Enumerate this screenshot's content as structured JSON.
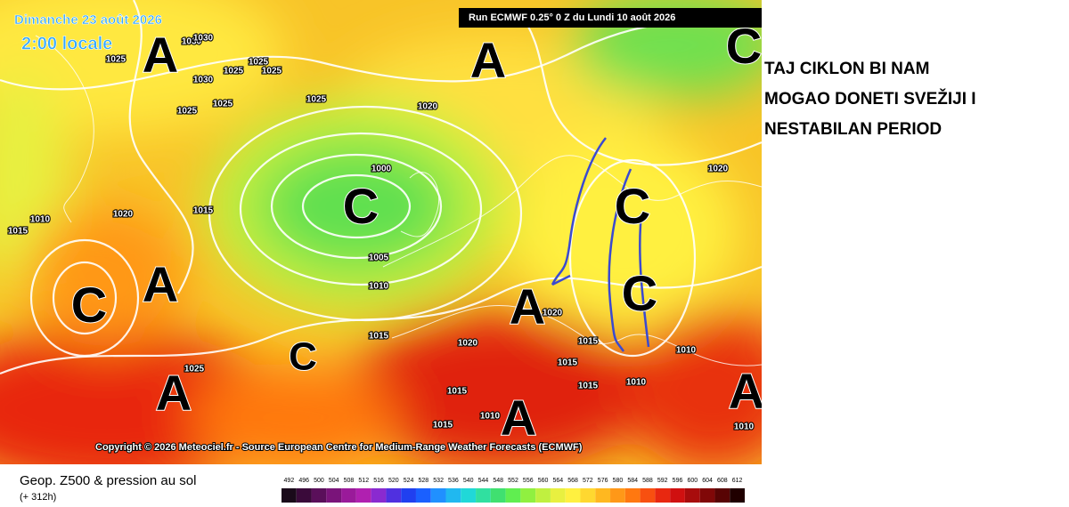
{
  "header": {
    "date": "Dimanche 23 août 2026",
    "time": "2:00 locale",
    "run": "Run ECMWF 0.25° 0 Z du Lundi 10 août 2026"
  },
  "caption": [
    "TAJ CIKLON BI NAM",
    "MOGAO DONETI SVEŽIJI I",
    "NESTABILAN PERIOD"
  ],
  "copyright": "Copyright © 2026 Meteociel.fr - Source European Centre for Medium-Range Weather Forecasts (ECMWF)",
  "footer": {
    "title": "Geop. Z500 & pression au sol",
    "lead": "(+ 312h)"
  },
  "centers": [
    "A",
    "A",
    "A",
    "A",
    "A",
    "A",
    "A",
    "C",
    "C",
    "C",
    "C",
    "C",
    "C"
  ],
  "pressure_labels": [
    "1030",
    "1030",
    "1025",
    "1030",
    "1025",
    "1025",
    "1025",
    "1025",
    "1025",
    "1020",
    "1025",
    "1000",
    "1005",
    "1010",
    "1015",
    "1020",
    "1010",
    "1015",
    "1015",
    "1020",
    "1015",
    "1015",
    "1015",
    "1010",
    "1010",
    "1010",
    "1015",
    "1020",
    "1020",
    "1025",
    "1015",
    "1010"
  ],
  "colorbar": [
    {
      "value": 492,
      "color": "#1a0a1a"
    },
    {
      "value": 496,
      "color": "#3a0a3a"
    },
    {
      "value": 500,
      "color": "#5a0f5a"
    },
    {
      "value": 504,
      "color": "#7a147a"
    },
    {
      "value": 508,
      "color": "#9a1a9a"
    },
    {
      "value": 512,
      "color": "#b020b0"
    },
    {
      "value": 516,
      "color": "#8a2ad0"
    },
    {
      "value": 520,
      "color": "#5030e0"
    },
    {
      "value": 524,
      "color": "#2040f0"
    },
    {
      "value": 528,
      "color": "#1a60ff"
    },
    {
      "value": 532,
      "color": "#2090ff"
    },
    {
      "value": 536,
      "color": "#20b8f0"
    },
    {
      "value": 540,
      "color": "#20d8d8"
    },
    {
      "value": 544,
      "color": "#30e0a0"
    },
    {
      "value": 548,
      "color": "#40e070"
    },
    {
      "value": 552,
      "color": "#60ee50"
    },
    {
      "value": 556,
      "color": "#90f040"
    },
    {
      "value": 560,
      "color": "#c0f040"
    },
    {
      "value": 564,
      "color": "#e8f040"
    },
    {
      "value": 568,
      "color": "#fff040"
    },
    {
      "value": 572,
      "color": "#ffd830"
    },
    {
      "value": 576,
      "color": "#ffb820"
    },
    {
      "value": 580,
      "color": "#ff9818"
    },
    {
      "value": 584,
      "color": "#ff7810"
    },
    {
      "value": 588,
      "color": "#f85010"
    },
    {
      "value": 592,
      "color": "#e82810"
    },
    {
      "value": 596,
      "color": "#d01010"
    },
    {
      "value": 600,
      "color": "#a80c0c"
    },
    {
      "value": 604,
      "color": "#800808"
    },
    {
      "value": 608,
      "color": "#580404"
    },
    {
      "value": 612,
      "color": "#200000"
    }
  ]
}
